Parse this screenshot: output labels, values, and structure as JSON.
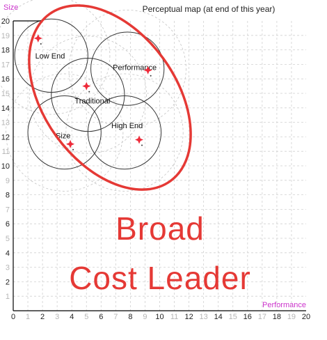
{
  "chart_data": {
    "type": "scatter",
    "title": "Perceptual map (at end of this year)",
    "xlabel": "Performance",
    "ylabel": "Size",
    "xlim": [
      0,
      20
    ],
    "ylim": [
      0,
      20
    ],
    "grid": true,
    "x_ticks": [
      "0",
      "1",
      "2",
      "3",
      "4",
      "5",
      "6",
      "7",
      "8",
      "9",
      "10",
      "11",
      "12",
      "13",
      "14",
      "15",
      "16",
      "17",
      "18",
      "19",
      "20"
    ],
    "y_ticks": [
      "1",
      "2",
      "3",
      "4",
      "5",
      "6",
      "7",
      "8",
      "9",
      "10",
      "11",
      "12",
      "13",
      "14",
      "15",
      "16",
      "17",
      "18",
      "19",
      "20"
    ],
    "segments": [
      {
        "name": "Low End",
        "center": [
          2.6,
          17.6
        ],
        "radius": 2.5,
        "label_at": [
          1.5,
          17.4
        ]
      },
      {
        "name": "Performance",
        "center": [
          7.8,
          16.7
        ],
        "radius": 2.5,
        "label_at": [
          6.8,
          16.6
        ]
      },
      {
        "name": "Traditional",
        "center": [
          5.1,
          14.9
        ],
        "radius": 2.5,
        "label_at": [
          4.2,
          14.3
        ]
      },
      {
        "name": "Size",
        "center": [
          3.5,
          12.3
        ],
        "radius": 2.5,
        "label_at": [
          2.9,
          11.9
        ]
      },
      {
        "name": "High End",
        "center": [
          7.6,
          12.3
        ],
        "radius": 2.5,
        "label_at": [
          6.7,
          12.6
        ]
      }
    ],
    "products": [
      {
        "x": 1.7,
        "y": 18.8
      },
      {
        "x": 5.0,
        "y": 15.5
      },
      {
        "x": 9.2,
        "y": 16.6
      },
      {
        "x": 3.9,
        "y": 11.5
      },
      {
        "x": 8.6,
        "y": 11.8
      }
    ],
    "product_color": "#ee2b3a"
  },
  "overlay": {
    "line1": "Broad",
    "line2": "Cost Leader",
    "color": "#e53935"
  }
}
